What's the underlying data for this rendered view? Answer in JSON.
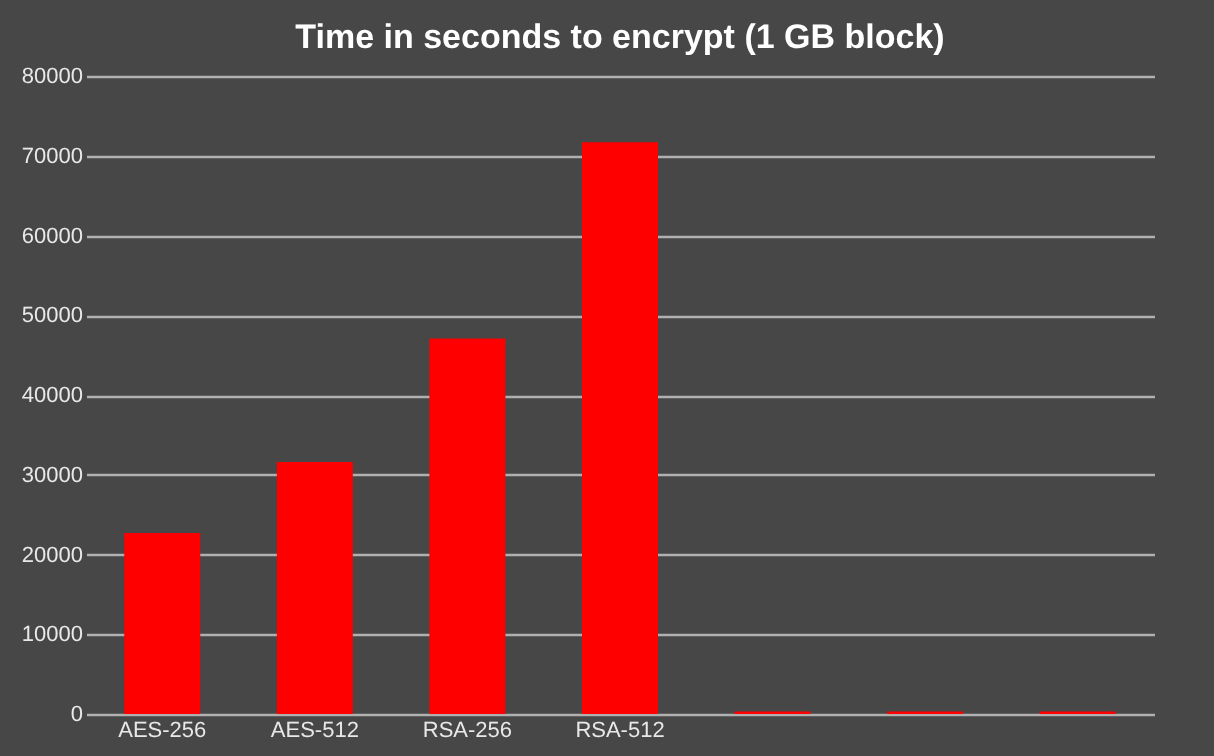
{
  "chart_data": {
    "type": "bar",
    "title": "Time in seconds to encrypt (1 GB block)",
    "categories": [
      "AES-256",
      "AES-512",
      "RSA-256",
      "RSA-512",
      null,
      null,
      null
    ],
    "values": [
      22700,
      31600,
      47100,
      71700,
      300,
      300,
      300
    ],
    "color": "#ff0000",
    "ylim": [
      0,
      80000
    ],
    "yticks": [
      0,
      10000,
      20000,
      30000,
      40000,
      50000,
      60000,
      70000,
      80000
    ],
    "grid": "y"
  }
}
